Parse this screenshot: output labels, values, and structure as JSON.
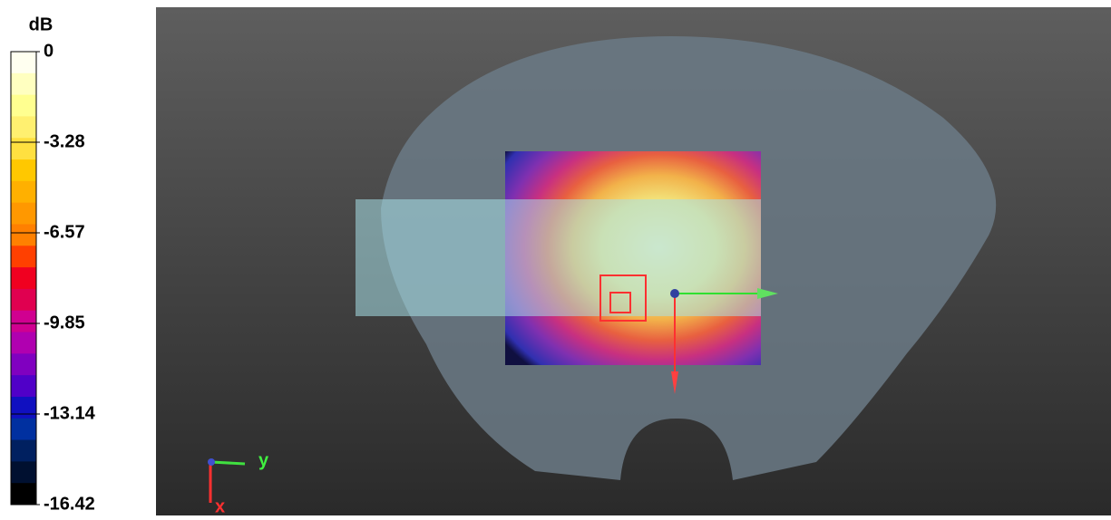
{
  "colorbar": {
    "unit": "dB",
    "ticks": [
      "0",
      "-3.28",
      "-6.57",
      "-9.85",
      "-13.14",
      "-16.42"
    ]
  },
  "view": {
    "axis_labels": {
      "y": "y",
      "x": "x"
    }
  }
}
